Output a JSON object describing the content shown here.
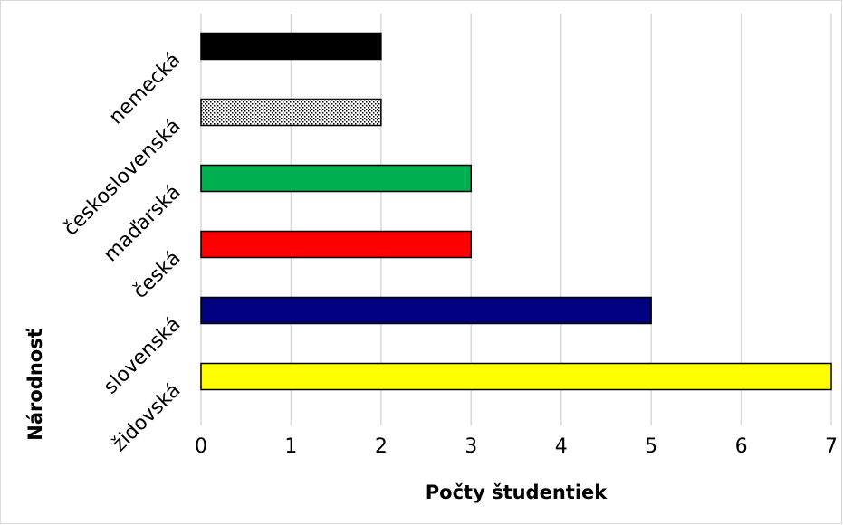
{
  "chart_data": {
    "type": "barh",
    "xlabel": "Počty študentiek",
    "ylabel": "Národnosť",
    "categories": [
      "nemecká",
      "československá",
      "maďarská",
      "česká",
      "slovenská",
      "židovská"
    ],
    "values": [
      2,
      2,
      3,
      3,
      5,
      7
    ],
    "colors": [
      "#000000",
      "#ffffff",
      "#00b050",
      "#ff0000",
      "#000080",
      "#ffff00"
    ],
    "patterns": [
      null,
      "dots",
      null,
      null,
      null,
      null
    ],
    "xlim": [
      0,
      7
    ],
    "xticks": [
      0,
      1,
      2,
      3,
      4,
      5,
      6,
      7
    ],
    "grid": true
  }
}
